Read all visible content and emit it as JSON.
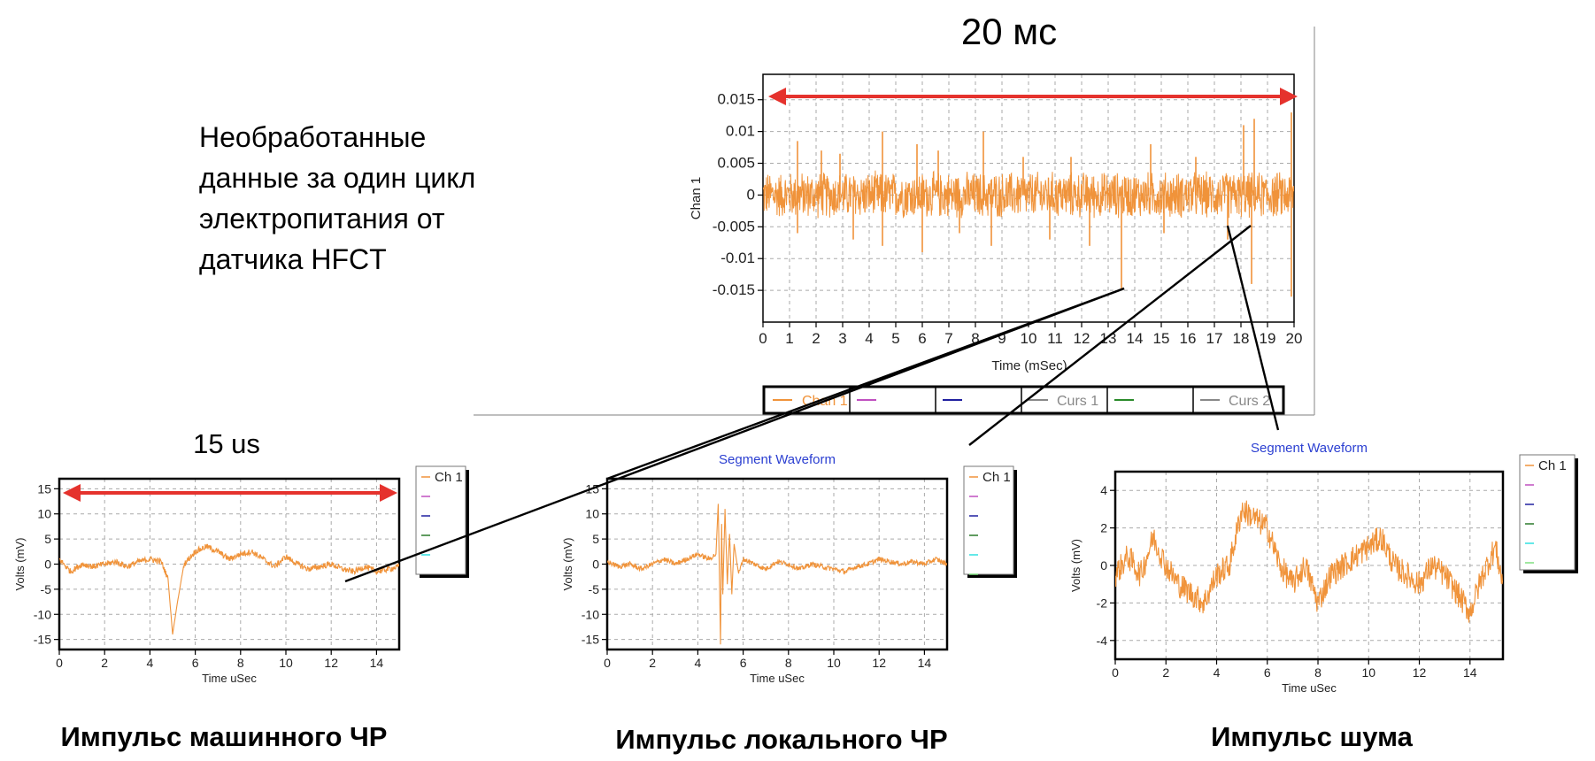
{
  "page": {
    "description_lines": [
      "Необработанные",
      "данные за один цикл",
      "электропитания от",
      "датчика HFCT"
    ],
    "window_label": "20 мс",
    "pulse_label": "15 us"
  },
  "colors": {
    "signal": "#f0933a",
    "arrow": "#e5322d",
    "segment_title": "#2b3fd1"
  },
  "chart_data": [
    {
      "id": "main",
      "type": "line",
      "title": "",
      "xlabel": "Time (mSec)",
      "ylabel": "Chan 1",
      "xlim": [
        0,
        20
      ],
      "ylim": [
        -0.02,
        0.019
      ],
      "xticks": [
        "0",
        "1",
        "2",
        "3",
        "4",
        "5",
        "6",
        "7",
        "8",
        "9",
        "10",
        "11",
        "12",
        "13",
        "14",
        "15",
        "16",
        "17",
        "18",
        "19",
        "20"
      ],
      "yticks": [
        {
          "v": 0.015,
          "label": "0.015"
        },
        {
          "v": 0.01,
          "label": "0.01"
        },
        {
          "v": 0.005,
          "label": "0.005"
        },
        {
          "v": 0,
          "label": "0"
        },
        {
          "v": -0.005,
          "label": "-0.005"
        },
        {
          "v": -0.01,
          "label": "-0.01"
        },
        {
          "v": -0.015,
          "label": "-0.015"
        }
      ],
      "grid": true,
      "noise_band": 0.004,
      "spikes": [
        {
          "x": 1.3,
          "y": 0.0085
        },
        {
          "x": 1.3,
          "y": -0.006
        },
        {
          "x": 2.2,
          "y": 0.007
        },
        {
          "x": 2.9,
          "y": 0.0065
        },
        {
          "x": 3.4,
          "y": -0.007
        },
        {
          "x": 4.5,
          "y": 0.01
        },
        {
          "x": 4.5,
          "y": -0.008
        },
        {
          "x": 5.8,
          "y": 0.008
        },
        {
          "x": 6.0,
          "y": -0.009
        },
        {
          "x": 6.6,
          "y": 0.007
        },
        {
          "x": 7.4,
          "y": -0.006
        },
        {
          "x": 8.3,
          "y": 0.01
        },
        {
          "x": 8.6,
          "y": -0.008
        },
        {
          "x": 9.8,
          "y": 0.006
        },
        {
          "x": 10.8,
          "y": -0.007
        },
        {
          "x": 11.6,
          "y": 0.006
        },
        {
          "x": 12.3,
          "y": -0.008
        },
        {
          "x": 13.5,
          "y": -0.015
        },
        {
          "x": 14.6,
          "y": 0.008
        },
        {
          "x": 15.1,
          "y": -0.006
        },
        {
          "x": 16.3,
          "y": 0.006
        },
        {
          "x": 17.5,
          "y": -0.007
        },
        {
          "x": 18.1,
          "y": 0.011
        },
        {
          "x": 18.4,
          "y": -0.014
        },
        {
          "x": 18.5,
          "y": 0.012
        },
        {
          "x": 19.9,
          "y": 0.013
        },
        {
          "x": 19.9,
          "y": -0.016
        }
      ],
      "legend": {
        "placement": "bottom",
        "items": [
          "Chan 1",
          "",
          "",
          "Curs 1",
          "",
          "Curs 2"
        ]
      }
    },
    {
      "id": "machine",
      "type": "line",
      "title": "",
      "caption": "Импульс машинного ЧР",
      "xlabel": "Time  uSec",
      "ylabel": "Volts (mV)",
      "xlim": [
        0,
        15
      ],
      "ylim": [
        -17,
        17
      ],
      "xticks": [
        "0",
        "2",
        "4",
        "6",
        "8",
        "10",
        "12",
        "14"
      ],
      "yticks": [
        {
          "v": 15,
          "label": "15"
        },
        {
          "v": 10,
          "label": "10"
        },
        {
          "v": 5,
          "label": "5"
        },
        {
          "v": 0,
          "label": "0"
        },
        {
          "v": -5,
          "label": "-5"
        },
        {
          "v": -10,
          "label": "-10"
        },
        {
          "v": -15,
          "label": "-15"
        }
      ],
      "grid": true,
      "x": [
        0,
        0.5,
        1,
        1.5,
        2,
        2.5,
        3,
        3.5,
        4,
        4.5,
        4.8,
        5.0,
        5.2,
        5.5,
        6,
        6.5,
        7,
        7.5,
        8,
        8.5,
        9,
        9.5,
        10,
        10.5,
        11,
        11.5,
        12,
        12.5,
        13,
        13.5,
        14,
        14.5,
        15
      ],
      "y": [
        1,
        -1.5,
        0,
        -0.5,
        0,
        0.5,
        -0.5,
        0.5,
        1,
        0.5,
        -3,
        -14,
        -8,
        0,
        2.5,
        3.5,
        2.5,
        1,
        2,
        2.5,
        1,
        -0.5,
        1.5,
        0,
        -1,
        -0.5,
        0,
        -1,
        -1.5,
        -0.5,
        -1.5,
        -1,
        -0.5
      ],
      "noise": 0.6,
      "legend": {
        "placement": "right",
        "items": [
          "Ch 1",
          "",
          "",
          "",
          ""
        ]
      }
    },
    {
      "id": "local",
      "type": "line",
      "title": "Segment Waveform",
      "caption": "Импульс локального ЧР",
      "xlabel": "Time  uSec",
      "ylabel": "Volts (mV)",
      "xlim": [
        0,
        15
      ],
      "ylim": [
        -17,
        17
      ],
      "xticks": [
        "0",
        "2",
        "4",
        "6",
        "8",
        "10",
        "12",
        "14"
      ],
      "yticks": [
        {
          "v": 15,
          "label": "15"
        },
        {
          "v": 10,
          "label": "10"
        },
        {
          "v": 5,
          "label": "5"
        },
        {
          "v": 0,
          "label": "0"
        },
        {
          "v": -5,
          "label": "-5"
        },
        {
          "v": -10,
          "label": "-10"
        },
        {
          "v": -15,
          "label": "-15"
        }
      ],
      "grid": true,
      "x": [
        0,
        0.5,
        1,
        1.5,
        2,
        2.5,
        3,
        3.5,
        4,
        4.5,
        4.8,
        4.9,
        5.0,
        5.05,
        5.1,
        5.2,
        5.3,
        5.4,
        5.5,
        5.6,
        5.8,
        6,
        6.5,
        7,
        7.5,
        8,
        8.5,
        9,
        9.5,
        10,
        10.5,
        11,
        11.5,
        12,
        12.5,
        13,
        13.5,
        14,
        14.5,
        15
      ],
      "y": [
        0.5,
        -0.5,
        0,
        -1,
        0,
        1,
        0,
        1,
        2,
        1,
        2,
        12,
        -16,
        8,
        -6,
        11,
        -4,
        6,
        -6,
        4,
        -2,
        1,
        0,
        -1,
        0.5,
        0,
        -1,
        0,
        -0.5,
        -1,
        -1.5,
        -0.5,
        0,
        1,
        0.5,
        0,
        0.5,
        0,
        1,
        0
      ],
      "noise": 0.5,
      "legend": {
        "placement": "right",
        "items": [
          "Ch 1",
          "",
          "",
          "",
          "",
          ""
        ]
      }
    },
    {
      "id": "noise",
      "type": "line",
      "title": "Segment Waveform",
      "caption": "Импульс шума",
      "xlabel": "Time  uSec",
      "ylabel": "Volts (mV)",
      "xlim": [
        0,
        15.3
      ],
      "ylim": [
        -5,
        5
      ],
      "xticks": [
        "0",
        "2",
        "4",
        "6",
        "8",
        "10",
        "12",
        "14"
      ],
      "yticks": [
        {
          "v": 4,
          "label": "4"
        },
        {
          "v": 2,
          "label": "2"
        },
        {
          "v": 0,
          "label": "0"
        },
        {
          "v": -2,
          "label": "-2"
        },
        {
          "v": -4,
          "label": "-4"
        }
      ],
      "grid": true,
      "x": [
        0,
        0.5,
        1,
        1.5,
        2,
        2.5,
        3,
        3.5,
        4,
        4.5,
        5,
        5.5,
        6,
        6.5,
        7,
        7.5,
        8,
        8.5,
        9,
        9.5,
        10,
        10.5,
        11,
        11.5,
        12,
        12.5,
        13,
        13.5,
        14,
        14.5,
        15,
        15.3
      ],
      "y": [
        -0.5,
        0.5,
        -0.5,
        1.5,
        0,
        -1,
        -1.5,
        -2,
        -0.5,
        0,
        3,
        2.5,
        2,
        0,
        -1,
        0,
        -2,
        -0.5,
        0,
        0.5,
        1,
        1.5,
        0,
        -0.5,
        -1,
        0,
        -0.5,
        -1.5,
        -2.5,
        -0.5,
        1,
        -1
      ],
      "noise": 0.7,
      "legend": {
        "placement": "right",
        "items": [
          "Ch 1",
          "",
          "",
          "",
          "",
          ""
        ]
      }
    }
  ]
}
